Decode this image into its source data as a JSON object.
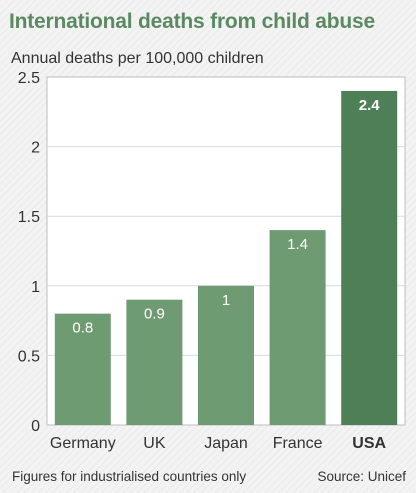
{
  "title": "International deaths from child abuse",
  "footnote": "Figures for industrialised countries only",
  "source": "Source: Unicef",
  "colors": {
    "title": "#5b8a62",
    "bar": "#6f9b72",
    "bar_highlight": "#4e7f56",
    "plot_background": "#ffffff",
    "grid": "#d9d9d9"
  },
  "chart_data": {
    "type": "bar",
    "title": "International deaths from child abuse",
    "ylabel": "Annual deaths per 100,000 children",
    "xlabel": "",
    "ylim": [
      0,
      2.5
    ],
    "yticks": [
      "0",
      "0.5",
      "1",
      "1.5",
      "2",
      "2.5"
    ],
    "grid": true,
    "categories": [
      "Germany",
      "UK",
      "Japan",
      "France",
      "USA"
    ],
    "values": [
      0.8,
      0.9,
      1,
      1.4,
      2.4
    ],
    "data_labels": [
      "0.8",
      "0.9",
      "1",
      "1.4",
      "2.4"
    ],
    "highlight": "USA"
  }
}
